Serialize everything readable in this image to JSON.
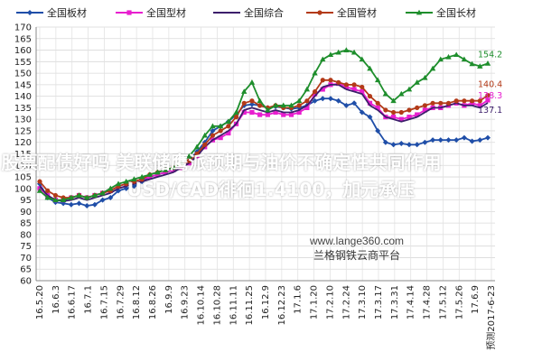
{
  "headline": {
    "line1": "股票配债好吗 美联储鹰派预期与油价不确定性共同作用",
    "line2": "USD/CAD徘徊1.4100，加元承压"
  },
  "watermark": {
    "url": "www.lange360.com",
    "name": "兰格钢铁云商平台"
  },
  "chart_data": {
    "type": "line",
    "title": "",
    "xlabel": "",
    "ylabel": "",
    "ylim": [
      60,
      170
    ],
    "yticks": [
      60,
      65,
      70,
      75,
      80,
      85,
      90,
      95,
      100,
      105,
      110,
      115,
      120,
      125,
      130,
      135,
      140,
      145,
      150,
      155,
      160,
      165,
      170
    ],
    "grid": true,
    "legend_position": "top",
    "x_tick_labels": [
      "16.5.20",
      "16.6.3",
      "16.6.17",
      "16.7.1",
      "16.7.15",
      "16.7.29",
      "16.8.12",
      "16.8.26",
      "16.9.9",
      "16.9.23",
      "16.10.14",
      "16.10.28",
      "16.11.11",
      "16.11.25",
      "16.12.9",
      "16.12.23",
      "17.1.6",
      "17.1.20",
      "17.2.10",
      "17.2.24",
      "17.3.10",
      "17.3.17",
      "17.3.31",
      "17.4.14",
      "17.4.28",
      "17.5.12",
      "17.5.26",
      "17.6.9",
      "预测2017-6-23"
    ],
    "end_labels": [
      {
        "text": "154.2",
        "series": "全国长材"
      },
      {
        "text": "140.4",
        "series": "全国管材"
      },
      {
        "text": "138.3",
        "series": "全国型材"
      },
      {
        "text": "137.1",
        "series": "全国综合"
      }
    ],
    "series": [
      {
        "name": "全国板材",
        "color": "#1f4ea8",
        "marker": "diamond",
        "values": [
          102,
          96,
          94,
          93.5,
          93,
          93.5,
          92.5,
          93,
          95,
          96,
          99,
          100,
          101,
          103,
          105,
          106,
          107,
          108,
          110,
          112,
          116,
          120,
          125,
          127,
          129,
          132,
          136,
          136.5,
          136,
          135,
          135.5,
          135,
          134.5,
          135,
          136,
          138,
          139,
          139,
          138,
          136,
          137,
          133,
          131,
          125,
          120,
          119,
          119.5,
          119,
          119,
          120,
          121,
          121,
          121,
          121,
          122,
          120.5,
          121,
          122
        ]
      },
      {
        "name": "全国型材",
        "color": "#e81ecf",
        "marker": "square",
        "values": [
          100,
          97,
          95,
          95,
          96,
          97,
          96,
          97,
          98,
          99,
          101,
          102,
          103,
          104,
          105,
          106,
          107,
          108,
          109,
          111,
          114,
          118,
          121,
          122,
          124,
          128,
          133,
          133,
          132,
          132,
          133,
          132,
          132,
          133,
          135,
          141,
          143,
          145,
          145.5,
          144,
          143,
          142,
          137,
          135,
          131,
          131,
          130,
          131,
          132,
          134,
          135,
          135,
          136,
          137,
          136,
          137,
          136,
          138.3
        ]
      },
      {
        "name": "全国综合",
        "color": "#3c1e6b",
        "marker": "none",
        "values": [
          101,
          97,
          95,
          94.5,
          95,
          96,
          95,
          96,
          97,
          98,
          100,
          101,
          102,
          103,
          104,
          105,
          106,
          107,
          109,
          111,
          114,
          118,
          121,
          123,
          125,
          128,
          134,
          135,
          134,
          133,
          134,
          133,
          133,
          134,
          136,
          140,
          144,
          145,
          145,
          143,
          142,
          141,
          136,
          134,
          131,
          130,
          129,
          130,
          131,
          133,
          135,
          135,
          136,
          137,
          136,
          136,
          135,
          137.1
        ]
      },
      {
        "name": "全国管材",
        "color": "#b33a18",
        "marker": "circle",
        "values": [
          103,
          99,
          97,
          96,
          96,
          97,
          96,
          97,
          98,
          99,
          101,
          102,
          103,
          104,
          106,
          107,
          108,
          109,
          110,
          112,
          115,
          119,
          123,
          125,
          127,
          131,
          137,
          138,
          136,
          135,
          136,
          135,
          135,
          136,
          138,
          142,
          147,
          147,
          146,
          145,
          145,
          144,
          140,
          137,
          134,
          133,
          133,
          134,
          135,
          136,
          137,
          137,
          137,
          138,
          138,
          138,
          138,
          140.4
        ]
      },
      {
        "name": "全国长材",
        "color": "#1e8e2c",
        "marker": "triangle",
        "values": [
          99,
          96,
          95,
          95,
          96,
          97,
          96,
          97,
          98,
          100,
          102,
          103,
          104,
          105,
          106,
          107,
          108,
          109,
          111,
          114,
          118,
          123,
          127,
          127,
          129,
          133,
          142,
          146,
          138,
          134,
          136,
          136,
          136,
          138,
          143,
          150,
          156,
          158,
          159,
          160,
          159,
          156,
          152,
          147,
          141,
          138,
          141,
          143,
          146,
          148,
          152,
          156,
          157,
          158,
          156,
          154,
          153,
          154.2
        ]
      }
    ]
  }
}
